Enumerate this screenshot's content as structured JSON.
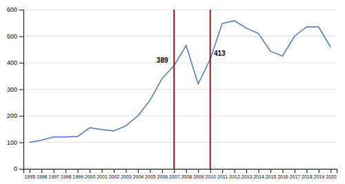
{
  "chart_data": {
    "type": "line",
    "x": [
      1995,
      1996,
      1997,
      1998,
      1999,
      2000,
      2001,
      2002,
      2003,
      2004,
      2005,
      2006,
      2007,
      2008,
      2009,
      2010,
      2011,
      2012,
      2013,
      2014,
      2015,
      2016,
      2017,
      2018,
      2019,
      2020
    ],
    "values": [
      100,
      108,
      120,
      120,
      122,
      155,
      148,
      143,
      162,
      200,
      258,
      340,
      389,
      465,
      320,
      413,
      548,
      558,
      530,
      510,
      443,
      425,
      500,
      535,
      535,
      458
    ],
    "color": "#4472C4",
    "xlim": [
      1994.5,
      2020.5
    ],
    "xticks": [
      1995,
      1996,
      1997,
      1998,
      1999,
      2000,
      2001,
      2002,
      2003,
      2004,
      2005,
      2006,
      2007,
      2008,
      2009,
      2010,
      2011,
      2012,
      2013,
      2014,
      2015,
      2016,
      2017,
      2018,
      2019,
      2020
    ],
    "ylim": [
      0,
      600
    ],
    "yticks": [
      0,
      100,
      200,
      300,
      400,
      500,
      600
    ],
    "grid": "y",
    "vlines": [
      {
        "x": 2007,
        "color": "#8B0000"
      },
      {
        "x": 2010,
        "color": "#8B0000"
      }
    ],
    "annotations": [
      {
        "text": "389",
        "x": 2006.5,
        "y": 395,
        "align": "right"
      },
      {
        "text": "413",
        "x": 2010.3,
        "y": 420,
        "align": "left"
      }
    ]
  }
}
